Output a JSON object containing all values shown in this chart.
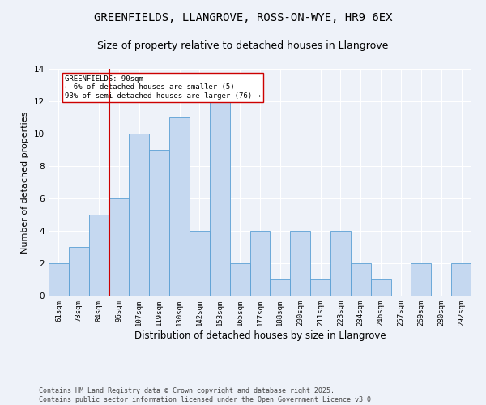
{
  "title": "GREENFIELDS, LLANGROVE, ROSS-ON-WYE, HR9 6EX",
  "subtitle": "Size of property relative to detached houses in Llangrove",
  "xlabel": "Distribution of detached houses by size in Llangrove",
  "ylabel": "Number of detached properties",
  "categories": [
    "61sqm",
    "73sqm",
    "84sqm",
    "96sqm",
    "107sqm",
    "119sqm",
    "130sqm",
    "142sqm",
    "153sqm",
    "165sqm",
    "177sqm",
    "188sqm",
    "200sqm",
    "211sqm",
    "223sqm",
    "234sqm",
    "246sqm",
    "257sqm",
    "269sqm",
    "280sqm",
    "292sqm"
  ],
  "values": [
    2,
    3,
    5,
    6,
    10,
    9,
    11,
    4,
    12,
    2,
    4,
    1,
    4,
    1,
    4,
    2,
    1,
    0,
    2,
    0,
    2
  ],
  "bar_color": "#c5d8f0",
  "bar_edge_color": "#5a9fd4",
  "vline_x_idx": 2,
  "vline_color": "#cc0000",
  "annotation_text": "GREENFIELDS: 90sqm\n← 6% of detached houses are smaller (5)\n93% of semi-detached houses are larger (76) →",
  "annotation_box_color": "white",
  "annotation_box_edge": "#cc0000",
  "ylim": [
    0,
    14
  ],
  "yticks": [
    0,
    2,
    4,
    6,
    8,
    10,
    12,
    14
  ],
  "footer": "Contains HM Land Registry data © Crown copyright and database right 2025.\nContains public sector information licensed under the Open Government Licence v3.0.",
  "bg_color": "#eef2f9",
  "plot_bg_color": "#eef2f9",
  "grid_color": "white",
  "title_fontsize": 10,
  "subtitle_fontsize": 9,
  "xlabel_fontsize": 8.5,
  "ylabel_fontsize": 8,
  "tick_fontsize": 6.5,
  "footer_fontsize": 6
}
